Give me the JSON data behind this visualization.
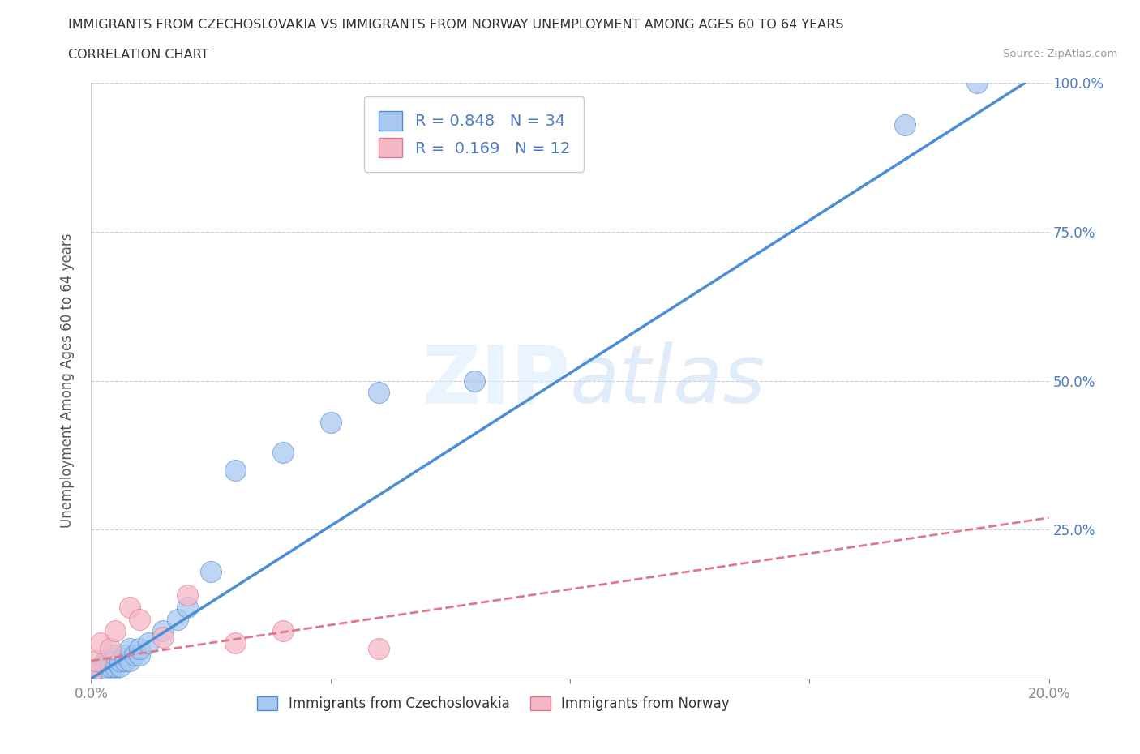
{
  "title_line1": "IMMIGRANTS FROM CZECHOSLOVAKIA VS IMMIGRANTS FROM NORWAY UNEMPLOYMENT AMONG AGES 60 TO 64 YEARS",
  "title_line2": "CORRELATION CHART",
  "source": "Source: ZipAtlas.com",
  "ylabel": "Unemployment Among Ages 60 to 64 years",
  "xlim": [
    0.0,
    0.2
  ],
  "ylim": [
    0.0,
    1.0
  ],
  "R_czech": 0.848,
  "N_czech": 34,
  "R_norway": 0.169,
  "N_norway": 12,
  "blue_color": "#a8c8f0",
  "pink_color": "#f5b8c8",
  "line_blue": "#4a8fd4",
  "line_pink": "#e07888",
  "legend_color": "#4a7bc4",
  "background_color": "#ffffff",
  "grid_color": "#cccccc",
  "czech_scatter_x": [
    0.0,
    0.001,
    0.001,
    0.002,
    0.002,
    0.003,
    0.003,
    0.003,
    0.004,
    0.004,
    0.005,
    0.005,
    0.005,
    0.006,
    0.006,
    0.007,
    0.007,
    0.008,
    0.008,
    0.009,
    0.01,
    0.01,
    0.012,
    0.015,
    0.018,
    0.02,
    0.025,
    0.03,
    0.04,
    0.05,
    0.06,
    0.08,
    0.17,
    0.185
  ],
  "czech_scatter_y": [
    0.0,
    0.005,
    0.01,
    0.01,
    0.02,
    0.01,
    0.02,
    0.03,
    0.01,
    0.02,
    0.02,
    0.03,
    0.04,
    0.02,
    0.03,
    0.03,
    0.04,
    0.03,
    0.05,
    0.04,
    0.04,
    0.05,
    0.06,
    0.08,
    0.1,
    0.12,
    0.18,
    0.35,
    0.38,
    0.43,
    0.48,
    0.5,
    0.93,
    1.0
  ],
  "norway_scatter_x": [
    0.0,
    0.001,
    0.002,
    0.004,
    0.005,
    0.008,
    0.01,
    0.015,
    0.02,
    0.03,
    0.04,
    0.06
  ],
  "norway_scatter_y": [
    0.01,
    0.03,
    0.06,
    0.05,
    0.08,
    0.12,
    0.1,
    0.07,
    0.14,
    0.06,
    0.08,
    0.05
  ]
}
